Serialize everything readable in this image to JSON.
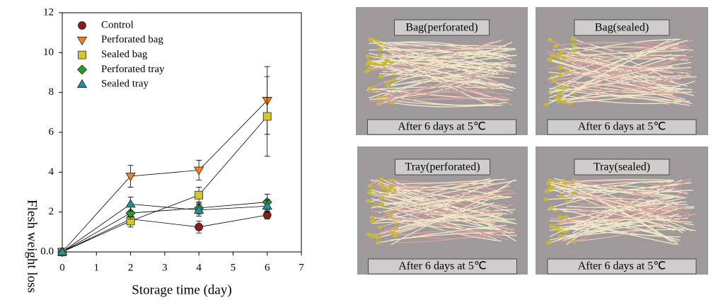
{
  "chart_data": {
    "type": "line",
    "xlabel": "Storage time (day)",
    "ylabel": "Flesh weight loss",
    "xlim": [
      0,
      7
    ],
    "xticks": [
      0,
      1,
      2,
      3,
      4,
      5,
      6,
      7
    ],
    "ylim": [
      0,
      12
    ],
    "yticks": [
      {
        "value": 0,
        "label": "0.0"
      },
      2,
      4,
      6,
      8,
      10,
      12
    ],
    "x": [
      0,
      2,
      4,
      6
    ],
    "series": [
      {
        "name": "Control",
        "color": "#8b1a1a",
        "marker": "circle",
        "values": [
          0,
          1.65,
          1.25,
          1.85
        ],
        "errors": [
          0,
          0.2,
          0.3,
          0.2
        ]
      },
      {
        "name": "Perforated bag",
        "color": "#f07f20",
        "marker": "triangle-down",
        "values": [
          0,
          3.8,
          4.1,
          7.6
        ],
        "errors": [
          0,
          0.55,
          0.5,
          1.7
        ]
      },
      {
        "name": "Sealed bag",
        "color": "#d4c830",
        "marker": "square",
        "values": [
          0,
          1.55,
          2.85,
          6.8
        ],
        "errors": [
          0,
          0.3,
          0.4,
          2.0
        ]
      },
      {
        "name": "Perforated tray",
        "color": "#2e9a2e",
        "marker": "diamond",
        "values": [
          0,
          1.95,
          2.2,
          2.5
        ],
        "errors": [
          0,
          0.3,
          0.3,
          0.4
        ]
      },
      {
        "name": "Sealed tray",
        "color": "#2a8aa0",
        "marker": "triangle-up",
        "values": [
          0,
          2.4,
          2.1,
          2.3
        ],
        "errors": [
          0,
          0.35,
          0.3,
          0.3
        ]
      }
    ]
  },
  "photos": [
    {
      "label": "Bag(perforated)",
      "caption": "After 6 days at 5℃"
    },
    {
      "label": "Bag(sealed)",
      "caption": "After 6 days at 5℃"
    },
    {
      "label": "Tray(perforated)",
      "caption": "After 6 days at 5℃"
    },
    {
      "label": "Tray(sealed)",
      "caption": "After 6 days at 5℃"
    }
  ]
}
